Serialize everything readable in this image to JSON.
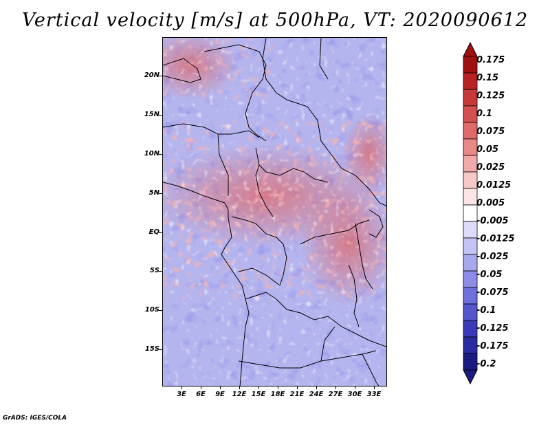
{
  "title": "Vertical velocity [m/s] at 500hPa, VT: 2020090612",
  "footer": "GrADS: IGES/COLA",
  "map": {
    "lat_labels": [
      "20N",
      "15N",
      "10N",
      "5N",
      "EQ",
      "5S",
      "10S",
      "15S"
    ],
    "lon_labels": [
      "3E",
      "6E",
      "9E",
      "12E",
      "15E",
      "18E",
      "21E",
      "24E",
      "27E",
      "30E",
      "33E"
    ]
  },
  "colorbar": {
    "labels": [
      "0.175",
      "0.15",
      "0.125",
      "0.1",
      "0.075",
      "0.05",
      "0.025",
      "0.0125",
      "0.005",
      "-0.005",
      "-0.0125",
      "-0.025",
      "-0.05",
      "-0.075",
      "-0.1",
      "-0.125",
      "-0.175",
      "-0.2"
    ],
    "colors": [
      "#a01010",
      "#b82222",
      "#c83838",
      "#d45050",
      "#de6a6a",
      "#e88888",
      "#f0a8a8",
      "#f7c8c8",
      "#fbe4e4",
      "#ffffff",
      "#dcdcfa",
      "#c4c4f4",
      "#a8a8ee",
      "#8c8ce6",
      "#7070dc",
      "#5555cc",
      "#3a3ab8",
      "#2a2aa0",
      "#1a1a80"
    ]
  }
}
